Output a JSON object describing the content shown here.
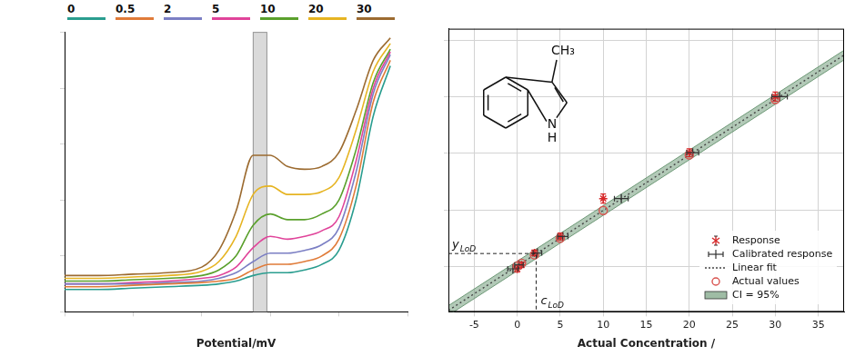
{
  "chart_data": [
    {
      "type": "line",
      "x_label": "Potential/mV",
      "xlim": [
        0,
        100
      ],
      "xticks": [
        0,
        20,
        40,
        60,
        80,
        100
      ],
      "ylim": [
        0,
        100
      ],
      "yticks": [
        0,
        20,
        40,
        60,
        80,
        100
      ],
      "tick_labels": false,
      "grid": false,
      "legend": "top",
      "highlight_band": [
        55,
        59
      ],
      "x": [
        0,
        10,
        20,
        30,
        40,
        45,
        50,
        55,
        60,
        65,
        70,
        75,
        80,
        85,
        90,
        95
      ],
      "series": [
        {
          "name": "0",
          "color": "#2a9d8f",
          "values": [
            8,
            8,
            8.5,
            9,
            9.5,
            10,
            11,
            13,
            14,
            14,
            15,
            17,
            22,
            40,
            70,
            88
          ]
        },
        {
          "name": "0.5",
          "color": "#e07b39",
          "values": [
            9,
            9,
            9.5,
            10,
            10.5,
            11,
            12,
            15,
            17,
            17,
            18,
            20,
            26,
            45,
            75,
            90
          ]
        },
        {
          "name": "2",
          "color": "#7b7fc4",
          "values": [
            10,
            10,
            10,
            10.5,
            11,
            12,
            14,
            18,
            21,
            21,
            22,
            24,
            30,
            50,
            78,
            92
          ]
        },
        {
          "name": "5",
          "color": "#e0449a",
          "values": [
            10,
            10,
            10.5,
            11,
            12,
            13,
            16,
            23,
            27,
            26,
            27,
            29,
            34,
            54,
            80,
            93
          ]
        },
        {
          "name": "10",
          "color": "#5aa02c",
          "values": [
            11,
            11,
            11.5,
            12,
            13,
            15,
            20,
            31,
            35,
            33,
            33,
            35,
            40,
            58,
            82,
            94
          ]
        },
        {
          "name": "20",
          "color": "#e6b422",
          "values": [
            12,
            12,
            12.5,
            13,
            14.5,
            18,
            27,
            42,
            45,
            42,
            42,
            43,
            48,
            65,
            86,
            96
          ]
        },
        {
          "name": "30",
          "color": "#9c6b30",
          "values": [
            13,
            13,
            13.5,
            14,
            16,
            22,
            36,
            56,
            56,
            52,
            51,
            52,
            57,
            72,
            90,
            98
          ]
        }
      ]
    },
    {
      "type": "scatter",
      "x_label": "Actual Concentration /",
      "xlim": [
        -8,
        38
      ],
      "xticks": [
        -5,
        0,
        5,
        10,
        15,
        20,
        25,
        30,
        35
      ],
      "ylim": [
        -8,
        42
      ],
      "yticks": [
        0,
        10,
        20,
        30,
        40
      ],
      "tick_labels": "x",
      "grid": true,
      "legend": "lower right",
      "series": [
        {
          "name": "Response",
          "type": "scatter",
          "marker": "star",
          "color": "#d62728",
          "x": [
            0,
            0.5,
            2,
            5,
            10,
            20,
            30
          ],
          "values": [
            -0.4,
            0.3,
            2.4,
            5.3,
            12.0,
            20.1,
            30.0
          ],
          "y_error": [
            0.6,
            0.5,
            0.5,
            0.6,
            0.8,
            0.7,
            0.8
          ]
        },
        {
          "name": "Calibrated response",
          "type": "scatter",
          "marker": "line",
          "color": "#333333",
          "x": [
            -0.5,
            0.2,
            2.35,
            5.3,
            12.1,
            20.4,
            30.5
          ],
          "values": [
            -0.4,
            0.3,
            2.4,
            5.3,
            12.0,
            20.1,
            30.0
          ],
          "x_error": [
            0.6,
            0.5,
            0.5,
            0.6,
            0.8,
            0.7,
            0.9
          ]
        },
        {
          "name": "Linear fit",
          "type": "line",
          "line_style": "dotted",
          "color": "#444444",
          "x": [
            -8,
            38
          ],
          "values": [
            -7.74,
            37.34
          ]
        },
        {
          "name": "Actual values",
          "type": "scatter",
          "marker": "circle",
          "color": "#d9534f",
          "x": [
            0,
            0.5,
            2,
            5,
            10,
            20,
            30
          ],
          "values": [
            0.1,
            0.59,
            2.06,
            5.0,
            9.9,
            19.7,
            29.5
          ]
        },
        {
          "name": "CI = 95%",
          "type": "band",
          "color": "#6f9a78",
          "x": [
            -8,
            38
          ],
          "lower": [
            -8.6,
            36.5
          ],
          "upper": [
            -6.9,
            38.2
          ]
        }
      ],
      "lod": {
        "x": 2.2,
        "y": 2.3,
        "x_label": {
          "text": "c",
          "subscript": "LoD"
        },
        "y_label": {
          "text": "y",
          "subscript": "LoD"
        }
      },
      "molecule": {
        "methyl": "CH₃",
        "ring_n": "N",
        "ring_h": "H"
      }
    }
  ]
}
